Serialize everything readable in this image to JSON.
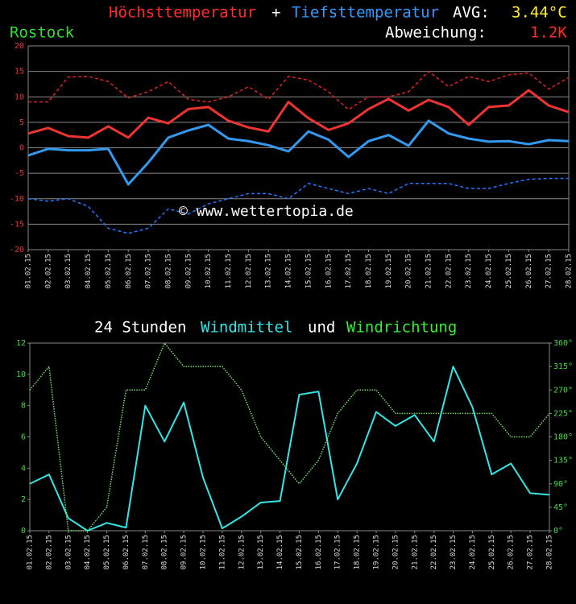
{
  "chart_data": [
    {
      "type": "line",
      "joiner": "+",
      "avg_label": "AVG:",
      "avg_value": "3.44°C",
      "location": "Rostock",
      "deviation_label": "Abweichung:",
      "deviation_value": "1.2K",
      "watermark": "© www.wettertopia.de",
      "categories": [
        "01.02.15",
        "02.02.15",
        "03.02.15",
        "04.02.15",
        "05.02.15",
        "06.02.15",
        "07.02.15",
        "08.02.15",
        "09.02.15",
        "10.02.15",
        "11.02.15",
        "12.02.15",
        "13.02.15",
        "14.02.15",
        "15.02.15",
        "16.02.15",
        "17.02.15",
        "18.02.15",
        "19.02.15",
        "20.02.15",
        "21.02.15",
        "22.02.15",
        "23.02.15",
        "24.02.15",
        "25.02.15",
        "26.02.15",
        "27.02.15",
        "28.02.15"
      ],
      "ylim": [
        -20,
        20
      ],
      "yticks": [
        -20,
        -15,
        -10,
        -5,
        0,
        5,
        10,
        15,
        20
      ],
      "grid": true,
      "series": [
        {
          "color": "#dd2222",
          "style": "dashed",
          "values": [
            9,
            9,
            13.9,
            14,
            13,
            9.8,
            11,
            13,
            9.5,
            9,
            10,
            12,
            9.5,
            14,
            13.3,
            11,
            7.5,
            10,
            10,
            11,
            15,
            12,
            14,
            13,
            14.3,
            14.7,
            11.5,
            13.8
          ]
        },
        {
          "color": "#2277ff",
          "style": "dashed",
          "values": [
            -10,
            -10.5,
            -10,
            -11.5,
            -15.8,
            -16.8,
            -15.8,
            -12,
            -13,
            -11,
            -10,
            -9,
            -9,
            -10,
            -7,
            -8,
            -9,
            -8,
            -9,
            -7,
            -7,
            -7,
            -8,
            -8,
            -7,
            -6.2,
            -6,
            -6
          ]
        },
        {
          "name": "Höchsttemperatur",
          "color": "#ee3333",
          "style": "solid",
          "values": [
            2.8,
            3.9,
            2.3,
            2,
            4.2,
            2,
            5.9,
            4.8,
            7.6,
            8,
            5.3,
            4,
            3.2,
            9,
            5.8,
            3.5,
            4.8,
            7.6,
            9.6,
            7.3,
            9.4,
            8,
            4.5,
            8,
            8.3,
            11.3,
            8.3,
            7
          ]
        },
        {
          "name": "Tiefsttemperatur",
          "color": "#3399ee",
          "style": "solid",
          "values": [
            -1.5,
            -0.2,
            -0.5,
            -0.5,
            -0.2,
            -7.2,
            -2.9,
            2,
            3.4,
            4.5,
            1.8,
            1.3,
            0.5,
            -0.7,
            3.2,
            1.6,
            -1.8,
            1.3,
            2.5,
            0.4,
            5.3,
            2.8,
            1.8,
            1.2,
            1.3,
            0.7,
            1.5,
            1.3
          ]
        }
      ]
    },
    {
      "type": "line",
      "title": "24 Stunden",
      "joiner": "und",
      "categories": [
        "01.02.15",
        "02.02.15",
        "03.02.15",
        "04.02.15",
        "05.02.15",
        "06.02.15",
        "07.02.15",
        "08.02.15",
        "09.02.15",
        "10.02.15",
        "11.02.15",
        "12.02.15",
        "13.02.15",
        "14.02.15",
        "15.02.15",
        "16.02.15",
        "17.02.15",
        "18.02.15",
        "19.02.15",
        "20.02.15",
        "21.02.15",
        "22.02.15",
        "23.02.15",
        "24.02.15",
        "25.02.15",
        "26.02.15",
        "27.02.15",
        "28.02.15"
      ],
      "ylim": [
        0,
        12
      ],
      "yticks": [
        0,
        2,
        4,
        6,
        8,
        10,
        12
      ],
      "y2lim": [
        0,
        360
      ],
      "y2ticks": [
        {
          "value": 0,
          "label": "0°"
        },
        {
          "value": 45,
          "label": "45°"
        },
        {
          "value": 90,
          "label": "90°"
        },
        {
          "value": 135,
          "label": "135°"
        },
        {
          "value": 180,
          "label": "180°"
        },
        {
          "value": 225,
          "label": "225°"
        },
        {
          "value": 270,
          "label": "270°"
        },
        {
          "value": 315,
          "label": "315°"
        },
        {
          "value": 360,
          "label": "360°"
        }
      ],
      "grid": false,
      "series": [
        {
          "name": "Windmittel",
          "color": "#33e6e6",
          "style": "solid",
          "values": [
            3,
            3.6,
            0.8,
            0,
            0.5,
            0.2,
            8,
            5.7,
            8.2,
            3.4,
            0.15,
            0.9,
            1.8,
            1.9,
            8.7,
            8.9,
            2,
            4.3,
            7.6,
            6.7,
            7.4,
            5.7,
            10.5,
            7.9,
            3.6,
            4.3,
            2.4,
            2.3
          ]
        },
        {
          "name": "Windrichtung",
          "color": "#77dd66",
          "style": "dotted",
          "axis": "y2",
          "values": [
            270,
            315,
            0,
            0,
            45,
            270,
            270,
            360,
            315,
            315,
            315,
            270,
            180,
            135,
            90,
            135,
            225,
            270,
            270,
            225,
            225,
            225,
            225,
            225,
            225,
            180,
            180,
            225
          ]
        }
      ]
    }
  ]
}
